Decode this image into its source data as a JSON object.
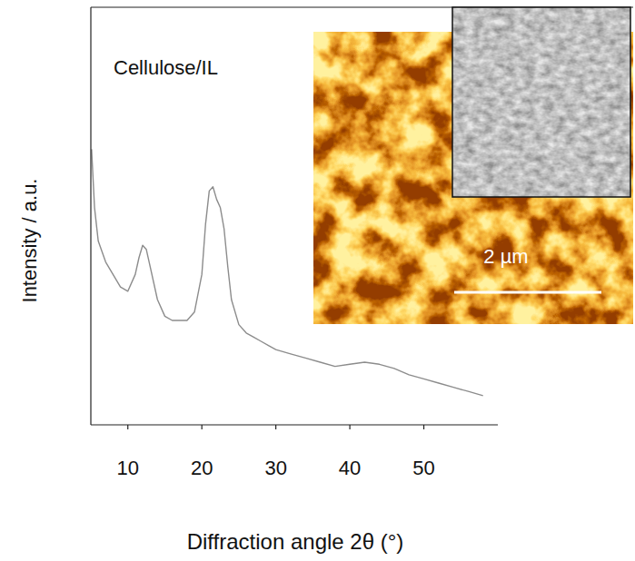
{
  "chart_data": {
    "type": "line",
    "annotation": "Cellulose/IL",
    "x_label": "Diffraction angle 2θ (°)",
    "y_label": "Intensity / a.u.",
    "inset_scale_bar": "2 µm",
    "x": [
      5.1,
      5.5,
      6,
      7,
      8,
      9,
      10,
      11,
      11.5,
      12,
      12.5,
      13,
      14,
      15,
      16,
      17,
      18,
      19,
      20,
      20.5,
      21,
      21.5,
      22,
      22.5,
      23,
      23.5,
      24,
      25,
      26,
      27,
      28,
      29,
      30,
      32,
      34,
      36,
      38,
      40,
      42,
      44,
      46,
      48,
      50,
      52,
      54,
      56,
      58
    ],
    "values": [
      66,
      52,
      44,
      39,
      36,
      33,
      32,
      36,
      40,
      43,
      42,
      38,
      30,
      26,
      25,
      25,
      25,
      27,
      36,
      48,
      56,
      57,
      54,
      52,
      47,
      38,
      30,
      24,
      22,
      21,
      20,
      19,
      18,
      17,
      16,
      15,
      14,
      14.5,
      15,
      14.5,
      13.5,
      12,
      11,
      10,
      9,
      8,
      7
    ],
    "color": "#8c8c8c",
    "xlim": [
      5,
      60
    ],
    "xticks": [
      10,
      20,
      30,
      40,
      50
    ],
    "ylim": [
      0,
      100
    ],
    "tick_labels": "x",
    "grid": false
  }
}
